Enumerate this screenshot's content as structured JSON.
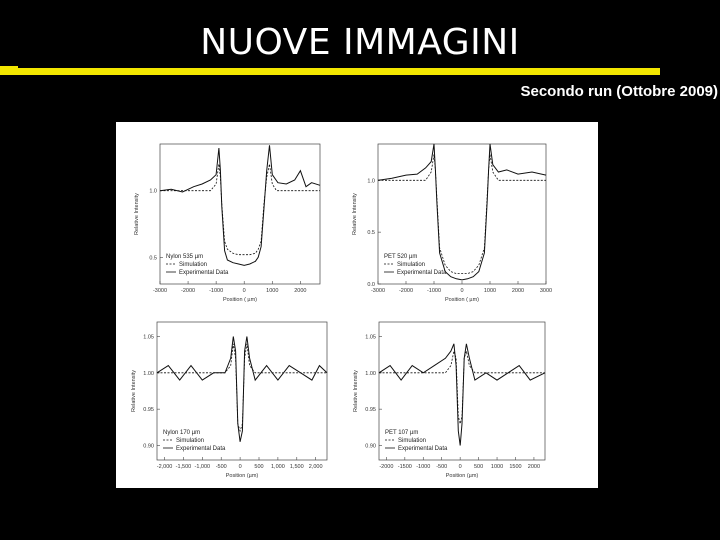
{
  "header": {
    "title": "NUOVE IMMAGINI",
    "subtitle": "Secondo run (Ottobre 2009)"
  },
  "colors": {
    "background": "#000000",
    "accent_bar": "#f2e600",
    "title_text": "#ffffff",
    "figure_bg": "#ffffff"
  },
  "chart_data": [
    {
      "type": "line",
      "sample": "Nylon 535 µm",
      "xlabel": "Position ( µm)",
      "ylabel": "Relative Intensity",
      "xticks": [
        "-3000",
        "-2000",
        "-1000",
        "0",
        "1000",
        "2000"
      ],
      "yticks": [
        "1.0",
        "0.5"
      ],
      "xlim": [
        -3000,
        2700
      ],
      "ylim": [
        0.3,
        1.35
      ],
      "legend": [
        "Simulation",
        "Experimental Data"
      ],
      "series": [
        {
          "name": "Simulation",
          "x": [
            -3000,
            -1200,
            -1000,
            -900,
            -850,
            -800,
            -700,
            -600,
            -400,
            -200,
            0,
            200,
            400,
            500,
            600,
            700,
            800,
            900,
            1000,
            1150,
            1300,
            2700
          ],
          "y": [
            1.0,
            1.0,
            1.05,
            1.2,
            1.1,
            0.9,
            0.62,
            0.56,
            0.53,
            0.52,
            0.52,
            0.52,
            0.53,
            0.56,
            0.62,
            0.9,
            1.1,
            1.2,
            1.05,
            1.0,
            1.0,
            1.0
          ]
        },
        {
          "name": "Experimental Data",
          "x": [
            -3000,
            -2600,
            -2200,
            -1800,
            -1500,
            -1200,
            -1000,
            -900,
            -850,
            -800,
            -700,
            -600,
            -400,
            -200,
            0,
            200,
            400,
            500,
            600,
            700,
            800,
            900,
            1000,
            1200,
            1500,
            1800,
            2000,
            2200,
            2400,
            2700
          ],
          "y": [
            1.0,
            1.01,
            0.99,
            1.03,
            1.05,
            1.08,
            1.12,
            1.32,
            1.15,
            0.88,
            0.55,
            0.48,
            0.46,
            0.45,
            0.44,
            0.45,
            0.47,
            0.5,
            0.58,
            0.86,
            1.15,
            1.34,
            1.12,
            1.06,
            1.05,
            1.08,
            1.15,
            1.03,
            1.06,
            1.04
          ]
        }
      ]
    },
    {
      "type": "line",
      "sample": "PET 520 µm",
      "xlabel": "Position ( µm)",
      "ylabel": "Relative Intensity",
      "xticks": [
        "-3000",
        "-2000",
        "-1000",
        "0",
        "1000",
        "2000",
        "3000"
      ],
      "yticks": [
        "1.0",
        "0.5",
        "0.0"
      ],
      "xlim": [
        -3000,
        3000
      ],
      "ylim": [
        0.0,
        1.35
      ],
      "legend": [
        "Simulation",
        "Experimental Data"
      ],
      "series": [
        {
          "name": "Simulation",
          "x": [
            -3000,
            -1300,
            -1100,
            -1000,
            -950,
            -900,
            -800,
            -600,
            -400,
            -200,
            0,
            200,
            400,
            600,
            800,
            900,
            950,
            1000,
            1100,
            1300,
            3000
          ],
          "y": [
            1.0,
            1.0,
            1.08,
            1.25,
            1.1,
            0.85,
            0.35,
            0.18,
            0.12,
            0.1,
            0.1,
            0.1,
            0.12,
            0.18,
            0.35,
            0.85,
            1.1,
            1.25,
            1.08,
            1.0,
            1.0
          ]
        },
        {
          "name": "Experimental Data",
          "x": [
            -3000,
            -2500,
            -2000,
            -1600,
            -1300,
            -1100,
            -1000,
            -950,
            -900,
            -800,
            -600,
            -400,
            -200,
            0,
            200,
            400,
            600,
            800,
            900,
            950,
            1000,
            1100,
            1300,
            1600,
            2000,
            2500,
            3000
          ],
          "y": [
            1.0,
            1.02,
            1.05,
            1.06,
            1.12,
            1.18,
            1.35,
            1.1,
            0.8,
            0.3,
            0.12,
            0.07,
            0.05,
            0.04,
            0.05,
            0.07,
            0.12,
            0.3,
            0.8,
            1.1,
            1.35,
            1.15,
            1.08,
            1.1,
            1.06,
            1.08,
            1.05
          ]
        }
      ]
    },
    {
      "type": "line",
      "sample": "Nylon 170 µm",
      "xlabel": "Position (µm)",
      "ylabel": "Relative Intensity",
      "xticks": [
        "-2,000",
        "-1,500",
        "-1,000",
        "-500",
        "0",
        "500",
        "1,000",
        "1,500",
        "2,000"
      ],
      "yticks": [
        "1.05",
        "1.00",
        "0.95",
        "0.90"
      ],
      "xlim": [
        -2200,
        2300
      ],
      "ylim": [
        0.88,
        1.07
      ],
      "legend": [
        "Simulation",
        "Experimental Data"
      ],
      "series": [
        {
          "name": "Simulation",
          "x": [
            -2200,
            -400,
            -250,
            -180,
            -120,
            -60,
            0,
            60,
            120,
            180,
            250,
            400,
            2300
          ],
          "y": [
            1.0,
            1.0,
            1.01,
            1.04,
            1.02,
            0.93,
            0.92,
            0.93,
            1.02,
            1.04,
            1.01,
            1.0,
            1.0
          ]
        },
        {
          "name": "Experimental Data",
          "x": [
            -2200,
            -1900,
            -1600,
            -1300,
            -1000,
            -700,
            -400,
            -250,
            -180,
            -120,
            -60,
            0,
            60,
            120,
            180,
            250,
            400,
            700,
            1000,
            1300,
            1600,
            1900,
            2100,
            2300
          ],
          "y": [
            1.0,
            1.01,
            0.99,
            1.01,
            0.99,
            1.0,
            1.0,
            1.02,
            1.05,
            1.03,
            0.93,
            0.905,
            0.92,
            1.03,
            1.05,
            1.02,
            0.99,
            1.01,
            0.99,
            1.01,
            1.0,
            0.99,
            1.01,
            1.0
          ]
        }
      ]
    },
    {
      "type": "line",
      "sample": "PET 107 µm",
      "xlabel": "Position (µm)",
      "ylabel": "Relative Intensity",
      "xticks": [
        "-2000",
        "-1500",
        "-1000",
        "-500",
        "0",
        "500",
        "1000",
        "1500",
        "2000"
      ],
      "yticks": [
        "1.05",
        "1.00",
        "0.95",
        "0.90"
      ],
      "xlim": [
        -2200,
        2300
      ],
      "ylim": [
        0.88,
        1.07
      ],
      "legend": [
        "Simulation",
        "Experimental Data"
      ],
      "series": [
        {
          "name": "Simulation",
          "x": [
            -2200,
            -400,
            -250,
            -170,
            -110,
            -50,
            0,
            50,
            110,
            170,
            250,
            400,
            2300
          ],
          "y": [
            1.0,
            1.0,
            1.01,
            1.03,
            1.02,
            0.94,
            0.93,
            0.94,
            1.02,
            1.03,
            1.01,
            1.0,
            1.0
          ]
        },
        {
          "name": "Experimental Data",
          "x": [
            -2200,
            -1900,
            -1600,
            -1300,
            -1000,
            -700,
            -400,
            -250,
            -170,
            -110,
            -50,
            0,
            50,
            110,
            170,
            250,
            400,
            700,
            1000,
            1300,
            1600,
            1900,
            2300
          ],
          "y": [
            1.0,
            1.01,
            0.99,
            1.01,
            1.0,
            1.01,
            1.02,
            1.03,
            1.04,
            1.01,
            0.92,
            0.9,
            0.93,
            1.02,
            1.04,
            1.02,
            0.99,
            1.0,
            0.99,
            1.0,
            1.01,
            0.99,
            1.0
          ]
        }
      ]
    }
  ]
}
